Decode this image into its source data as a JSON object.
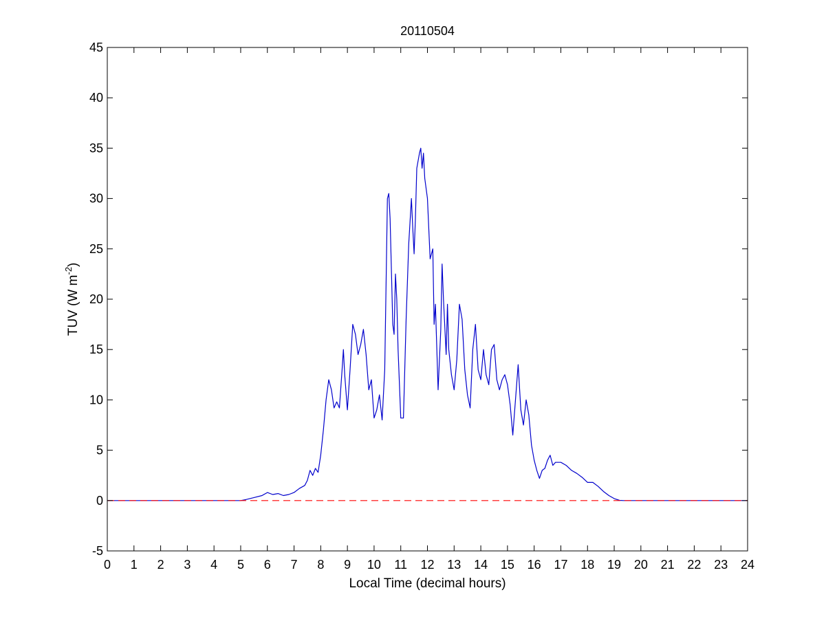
{
  "chart_data": {
    "type": "line",
    "title": "20110504",
    "xlabel": "Local Time (decimal hours)",
    "ylabel": {
      "prefix": "TUV (W m",
      "sup": "-2",
      "suffix": ")"
    },
    "xlim": [
      0,
      24
    ],
    "ylim": [
      -5,
      45
    ],
    "xticks": [
      0,
      1,
      2,
      3,
      4,
      5,
      6,
      7,
      8,
      9,
      10,
      11,
      12,
      13,
      14,
      15,
      16,
      17,
      18,
      19,
      20,
      21,
      22,
      23,
      24
    ],
    "yticks": [
      -5,
      0,
      5,
      10,
      15,
      20,
      25,
      30,
      35,
      40,
      45
    ],
    "grid": false,
    "legend": "none",
    "series": [
      {
        "color": "#0000cc",
        "style": "solid",
        "x": [
          0,
          5.0,
          5.2,
          5.5,
          5.8,
          6.0,
          6.2,
          6.4,
          6.6,
          6.8,
          7.0,
          7.2,
          7.4,
          7.5,
          7.6,
          7.7,
          7.8,
          7.9,
          8.0,
          8.1,
          8.2,
          8.3,
          8.4,
          8.5,
          8.6,
          8.7,
          8.8,
          8.85,
          8.9,
          9.0,
          9.1,
          9.2,
          9.3,
          9.4,
          9.5,
          9.6,
          9.7,
          9.8,
          9.9,
          10.0,
          10.1,
          10.2,
          10.3,
          10.4,
          10.5,
          10.55,
          10.6,
          10.7,
          10.75,
          10.8,
          10.85,
          10.9,
          11.0,
          11.1,
          11.2,
          11.3,
          11.4,
          11.45,
          11.5,
          11.55,
          11.6,
          11.7,
          11.75,
          11.8,
          11.85,
          11.9,
          12.0,
          12.1,
          12.2,
          12.25,
          12.3,
          12.4,
          12.5,
          12.55,
          12.6,
          12.7,
          12.75,
          12.8,
          12.9,
          13.0,
          13.1,
          13.2,
          13.3,
          13.4,
          13.5,
          13.6,
          13.7,
          13.8,
          13.9,
          14.0,
          14.1,
          14.2,
          14.3,
          14.4,
          14.5,
          14.6,
          14.7,
          14.8,
          14.9,
          15.0,
          15.1,
          15.2,
          15.3,
          15.4,
          15.5,
          15.6,
          15.7,
          15.8,
          15.9,
          16.0,
          16.1,
          16.2,
          16.3,
          16.4,
          16.5,
          16.6,
          16.7,
          16.8,
          17.0,
          17.2,
          17.4,
          17.6,
          17.8,
          18.0,
          18.2,
          18.4,
          18.6,
          18.8,
          19.0,
          19.2,
          19.35,
          24
        ],
        "y": [
          0,
          0,
          0.1,
          0.3,
          0.5,
          0.8,
          0.6,
          0.7,
          0.5,
          0.6,
          0.8,
          1.2,
          1.5,
          2.0,
          3.0,
          2.5,
          3.2,
          2.8,
          4.5,
          7.0,
          10.0,
          12.0,
          11.0,
          9.2,
          9.8,
          9.2,
          13.0,
          15.0,
          12.5,
          9.0,
          13.0,
          17.5,
          16.5,
          14.5,
          15.5,
          17.0,
          14.5,
          11.0,
          12.0,
          8.2,
          9.0,
          10.5,
          8.0,
          13.0,
          30.0,
          30.5,
          28.0,
          17.5,
          16.5,
          22.5,
          20.0,
          15.0,
          8.2,
          8.2,
          18.0,
          25.5,
          30.0,
          27.0,
          24.5,
          28.0,
          33.0,
          34.5,
          35.0,
          33.0,
          34.5,
          32.0,
          30.0,
          24.0,
          25.0,
          17.5,
          19.5,
          11.0,
          17.0,
          23.5,
          20.0,
          14.5,
          19.5,
          15.0,
          12.5,
          11.0,
          14.0,
          19.5,
          18.0,
          13.0,
          10.5,
          9.2,
          15.0,
          17.5,
          13.0,
          12.0,
          15.0,
          12.5,
          11.5,
          15.0,
          15.5,
          12.0,
          11.0,
          12.0,
          12.5,
          11.5,
          9.5,
          6.5,
          10.0,
          13.5,
          9.0,
          7.5,
          10.0,
          8.5,
          5.5,
          4.0,
          3.0,
          2.2,
          3.0,
          3.2,
          4.0,
          4.5,
          3.5,
          3.8,
          3.8,
          3.5,
          3.0,
          2.7,
          2.3,
          1.8,
          1.8,
          1.4,
          0.9,
          0.5,
          0.2,
          0.02,
          0,
          0
        ]
      },
      {
        "color": "#ff0000",
        "style": "dashed",
        "x": [
          0,
          24
        ],
        "y": [
          0,
          0
        ]
      }
    ]
  }
}
